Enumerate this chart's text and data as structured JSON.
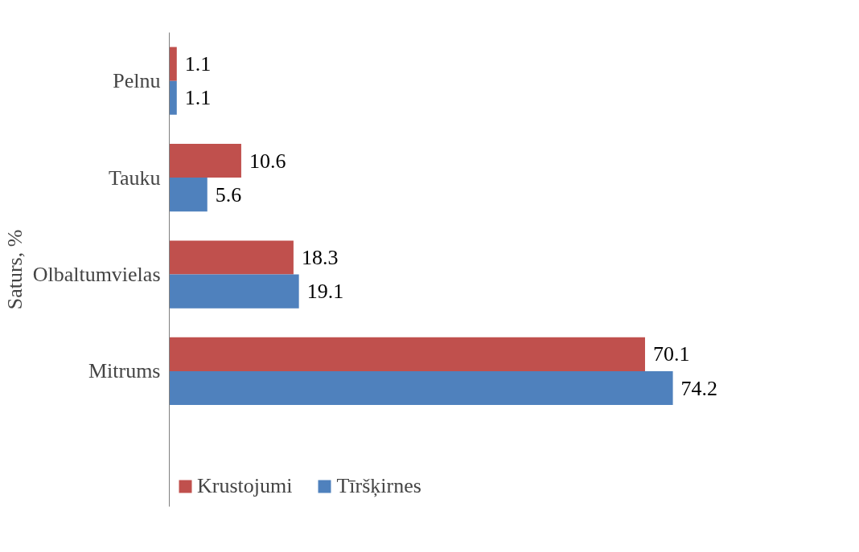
{
  "chart_data": {
    "type": "bar",
    "orientation": "horizontal",
    "ylabel": "Saturs, %",
    "categories": [
      "Pelnu",
      "Tauku",
      "Olbaltumvielas",
      "Mitrums"
    ],
    "series": [
      {
        "name": "Krustojumi",
        "color": "#c0504d",
        "values": [
          1.1,
          10.6,
          18.3,
          70.1
        ]
      },
      {
        "name": "Tīršķirnes",
        "color": "#4f81bd",
        "values": [
          1.1,
          5.6,
          19.1,
          74.2
        ]
      }
    ],
    "data_labels": true,
    "legend": "bottom left",
    "grid": false
  }
}
